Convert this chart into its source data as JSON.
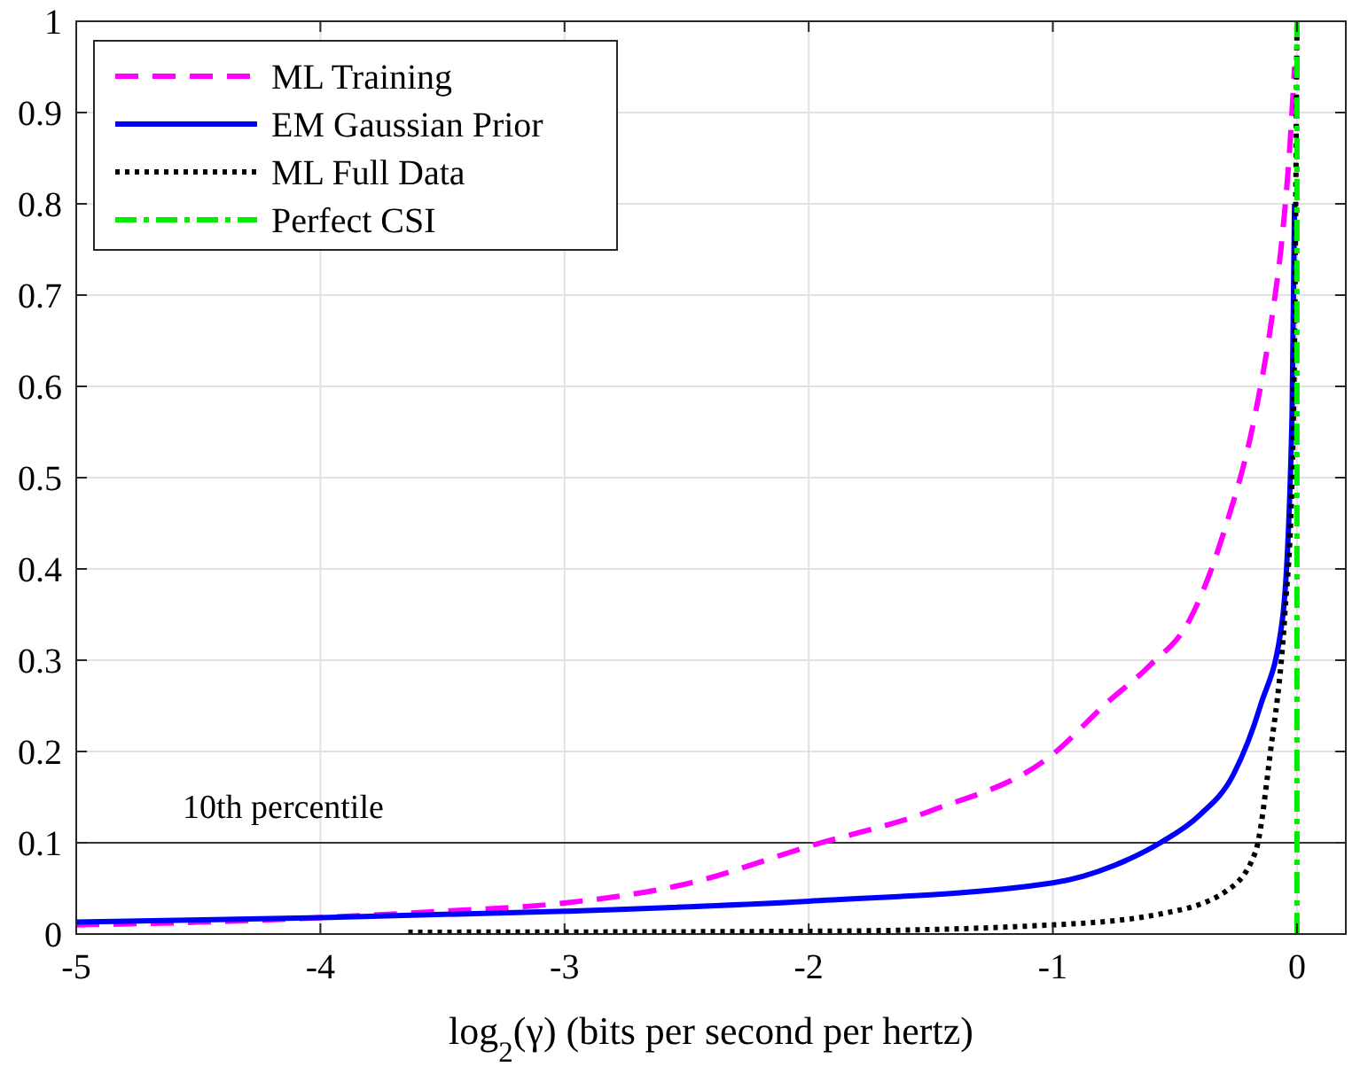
{
  "chart_data": {
    "type": "line",
    "xlabel": "log$_{2}$(γ) (bits per second per hertz)",
    "xlim": [
      -5,
      0.2
    ],
    "xticks": [
      -5,
      -4,
      -3,
      -2,
      -1,
      0
    ],
    "ylim": [
      0,
      1
    ],
    "yticks": [
      0,
      0.1,
      0.2,
      0.3,
      0.4,
      0.5,
      0.6,
      0.7,
      0.8,
      0.9,
      1
    ],
    "grid": true,
    "legend": "top left",
    "ref_lines": [
      {
        "axis": "y",
        "value": 0.1,
        "label": "10th percentile",
        "color": "#333333"
      }
    ],
    "series": [
      {
        "name": "ML Training",
        "color": "#ff00ff",
        "line_style": "dashed",
        "x": [
          -5,
          -4.5,
          -4,
          -3.5,
          -3,
          -2.5,
          -2,
          -1.5,
          -1,
          -0.78,
          -0.6,
          -0.44,
          -0.3,
          -0.17,
          -0.1,
          -0.06,
          -0.03,
          -0.01
        ],
        "values": [
          0.01,
          0.013,
          0.018,
          0.025,
          0.034,
          0.055,
          0.096,
          0.135,
          0.197,
          0.253,
          0.295,
          0.344,
          0.44,
          0.571,
          0.68,
          0.765,
          0.86,
          0.95
        ]
      },
      {
        "name": "EM Gaussian Prior",
        "color": "#0000ff",
        "line_style": "solid",
        "x": [
          -5,
          -4,
          -3,
          -2,
          -1,
          -0.75,
          -0.56,
          -0.4,
          -0.26,
          -0.15,
          -0.06,
          -0.02,
          -0.01
        ],
        "values": [
          0.013,
          0.018,
          0.025,
          0.036,
          0.056,
          0.075,
          0.1,
          0.13,
          0.175,
          0.25,
          0.344,
          0.571,
          0.8
        ]
      },
      {
        "name": "ML Full Data",
        "color": "#000000",
        "line_style": "dotted",
        "x": [
          -3.64,
          -2,
          -1,
          -0.56,
          -0.29,
          -0.17,
          -0.11,
          -0.05,
          -0.02,
          -0.005,
          0
        ],
        "values": [
          0.002,
          0.003,
          0.01,
          0.022,
          0.047,
          0.09,
          0.197,
          0.35,
          0.5,
          0.8,
          1
        ]
      },
      {
        "name": "Perfect CSI",
        "color": "#00ee00",
        "line_style": "dashdot",
        "x": [
          0,
          0
        ],
        "values": [
          0,
          1
        ]
      }
    ]
  }
}
